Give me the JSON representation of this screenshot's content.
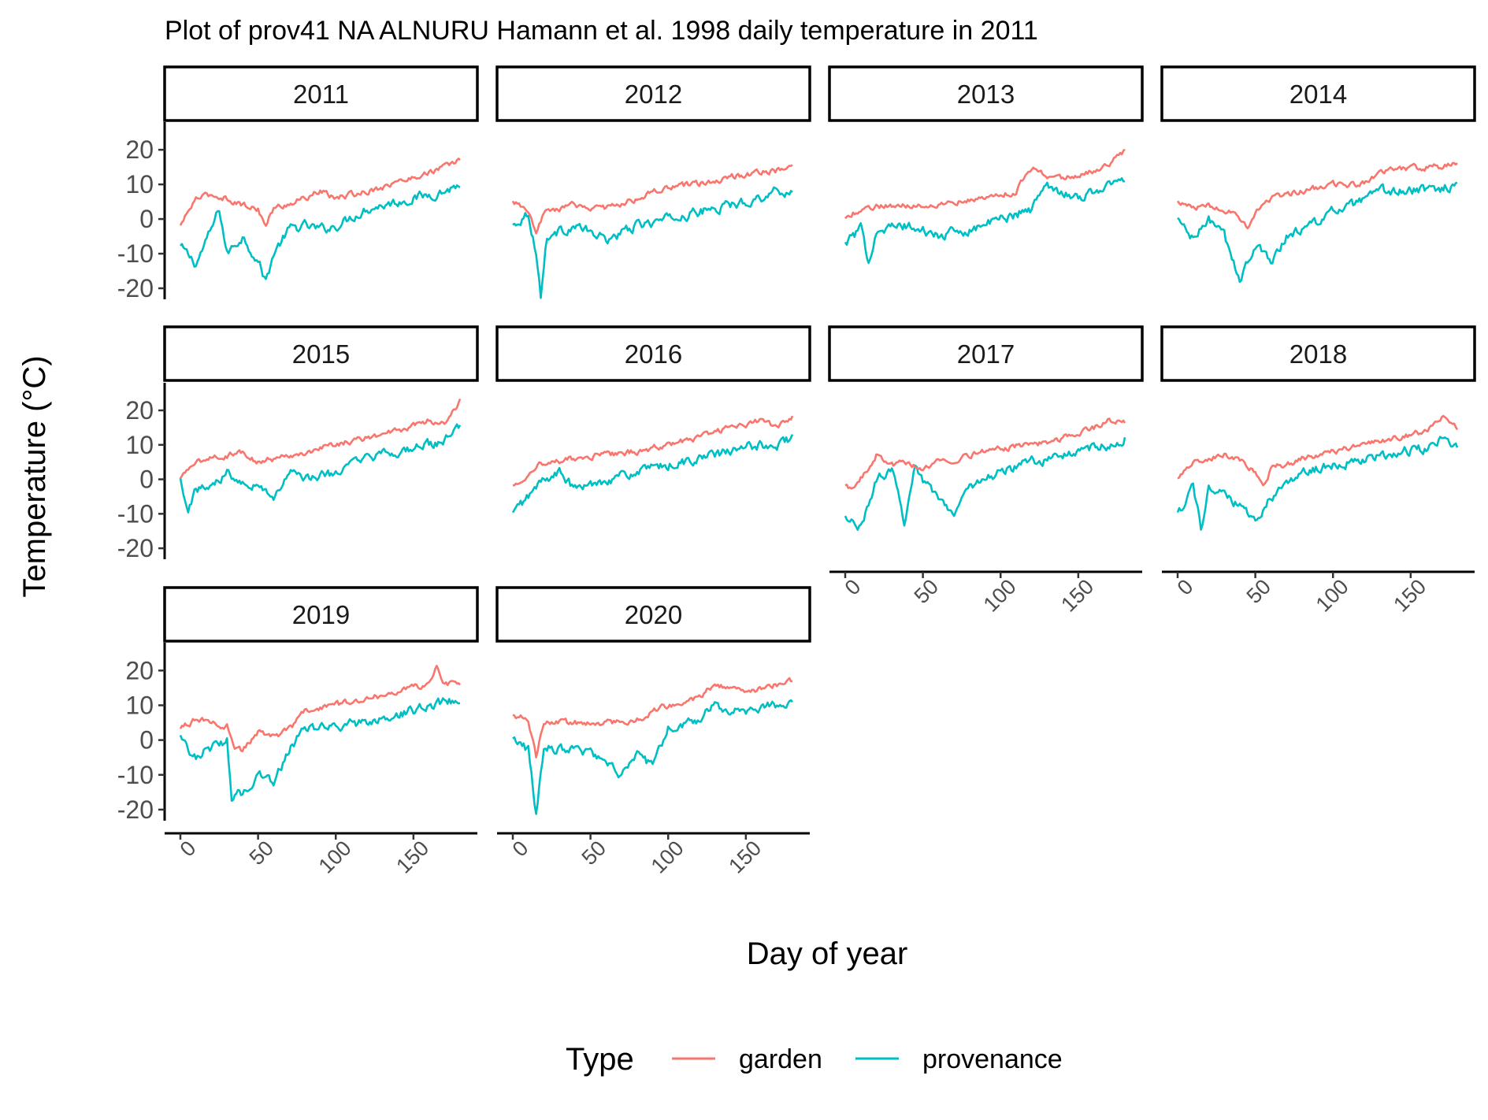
{
  "chart_data": {
    "type": "line",
    "title": "Plot of prov41 NA ALNURU Hamann et al. 1998 daily temperature in 2011",
    "xlabel": "Day of year",
    "ylabel": "Temperature (°C)",
    "xlim": [
      0,
      181
    ],
    "ylim": [
      -25,
      28
    ],
    "x_ticks": [
      "0",
      "50",
      "100",
      "150"
    ],
    "y_ticks": [
      "20",
      "10",
      "0",
      "-10",
      "-20"
    ],
    "grid": false,
    "legend": {
      "title": "Type",
      "position": "bottom",
      "entries": [
        {
          "label": "garden",
          "color": "#F8766D"
        },
        {
          "label": "provenance",
          "color": "#00BFC4"
        }
      ]
    },
    "facets": [
      {
        "label": "2011",
        "garden": [
          [
            0,
            -2
          ],
          [
            10,
            6
          ],
          [
            20,
            7
          ],
          [
            30,
            6
          ],
          [
            40,
            4
          ],
          [
            50,
            3
          ],
          [
            55,
            -2
          ],
          [
            60,
            3
          ],
          [
            80,
            6
          ],
          [
            90,
            8
          ],
          [
            100,
            6
          ],
          [
            120,
            8
          ],
          [
            150,
            12
          ],
          [
            170,
            15
          ],
          [
            180,
            17
          ]
        ],
        "provenance": [
          [
            0,
            -8
          ],
          [
            10,
            -13
          ],
          [
            20,
            -3
          ],
          [
            25,
            3
          ],
          [
            30,
            -10
          ],
          [
            40,
            -5
          ],
          [
            50,
            -12
          ],
          [
            55,
            -18
          ],
          [
            60,
            -10
          ],
          [
            70,
            -3
          ],
          [
            80,
            -2
          ],
          [
            90,
            -3
          ],
          [
            100,
            -2
          ],
          [
            120,
            3
          ],
          [
            150,
            6
          ],
          [
            170,
            8
          ],
          [
            180,
            10
          ]
        ]
      },
      {
        "label": "2012",
        "garden": [
          [
            0,
            5
          ],
          [
            10,
            2
          ],
          [
            15,
            -5
          ],
          [
            20,
            2
          ],
          [
            40,
            4
          ],
          [
            60,
            3
          ],
          [
            80,
            6
          ],
          [
            100,
            9
          ],
          [
            120,
            10
          ],
          [
            150,
            13
          ],
          [
            170,
            14
          ],
          [
            180,
            16
          ]
        ],
        "provenance": [
          [
            0,
            -2
          ],
          [
            10,
            2
          ],
          [
            15,
            -10
          ],
          [
            18,
            -22
          ],
          [
            22,
            -5
          ],
          [
            40,
            -2
          ],
          [
            60,
            -6
          ],
          [
            80,
            -2
          ],
          [
            100,
            0
          ],
          [
            120,
            2
          ],
          [
            150,
            5
          ],
          [
            170,
            8
          ],
          [
            180,
            8
          ]
        ]
      },
      {
        "label": "2013",
        "garden": [
          [
            0,
            0
          ],
          [
            10,
            3
          ],
          [
            30,
            4
          ],
          [
            50,
            4
          ],
          [
            70,
            5
          ],
          [
            90,
            6
          ],
          [
            110,
            8
          ],
          [
            120,
            15
          ],
          [
            130,
            12
          ],
          [
            150,
            12
          ],
          [
            170,
            16
          ],
          [
            180,
            20
          ]
        ],
        "provenance": [
          [
            0,
            -7
          ],
          [
            10,
            -3
          ],
          [
            15,
            -12
          ],
          [
            20,
            -3
          ],
          [
            40,
            -2
          ],
          [
            60,
            -5
          ],
          [
            80,
            -3
          ],
          [
            100,
            0
          ],
          [
            120,
            3
          ],
          [
            130,
            10
          ],
          [
            150,
            6
          ],
          [
            170,
            10
          ],
          [
            180,
            11
          ]
        ]
      },
      {
        "label": "2014",
        "garden": [
          [
            0,
            5
          ],
          [
            10,
            3
          ],
          [
            20,
            4
          ],
          [
            30,
            3
          ],
          [
            40,
            0
          ],
          [
            45,
            -2
          ],
          [
            50,
            2
          ],
          [
            60,
            6
          ],
          [
            80,
            8
          ],
          [
            100,
            10
          ],
          [
            120,
            10
          ],
          [
            130,
            14
          ],
          [
            150,
            15
          ],
          [
            170,
            15
          ],
          [
            180,
            16
          ]
        ],
        "provenance": [
          [
            0,
            0
          ],
          [
            10,
            -6
          ],
          [
            20,
            0
          ],
          [
            30,
            -5
          ],
          [
            35,
            -12
          ],
          [
            40,
            -17
          ],
          [
            50,
            -8
          ],
          [
            60,
            -12
          ],
          [
            70,
            -5
          ],
          [
            80,
            -3
          ],
          [
            100,
            2
          ],
          [
            120,
            5
          ],
          [
            130,
            8
          ],
          [
            150,
            8
          ],
          [
            170,
            9
          ],
          [
            180,
            10
          ]
        ]
      },
      {
        "label": "2015",
        "garden": [
          [
            0,
            0
          ],
          [
            10,
            5
          ],
          [
            20,
            6
          ],
          [
            30,
            7
          ],
          [
            40,
            8
          ],
          [
            50,
            5
          ],
          [
            60,
            6
          ],
          [
            80,
            8
          ],
          [
            100,
            10
          ],
          [
            120,
            12
          ],
          [
            140,
            14
          ],
          [
            160,
            17
          ],
          [
            170,
            16
          ],
          [
            180,
            23
          ]
        ],
        "provenance": [
          [
            0,
            0
          ],
          [
            5,
            -8
          ],
          [
            10,
            -3
          ],
          [
            20,
            -2
          ],
          [
            30,
            2
          ],
          [
            40,
            0
          ],
          [
            50,
            -2
          ],
          [
            60,
            -5
          ],
          [
            70,
            2
          ],
          [
            80,
            0
          ],
          [
            100,
            2
          ],
          [
            120,
            6
          ],
          [
            140,
            8
          ],
          [
            160,
            10
          ],
          [
            170,
            11
          ],
          [
            180,
            15
          ]
        ]
      },
      {
        "label": "2016",
        "garden": [
          [
            0,
            -2
          ],
          [
            10,
            2
          ],
          [
            20,
            5
          ],
          [
            40,
            6
          ],
          [
            60,
            7
          ],
          [
            80,
            8
          ],
          [
            100,
            10
          ],
          [
            120,
            12
          ],
          [
            140,
            15
          ],
          [
            160,
            17
          ],
          [
            170,
            15
          ],
          [
            180,
            18
          ]
        ],
        "provenance": [
          [
            0,
            -10
          ],
          [
            10,
            -5
          ],
          [
            20,
            0
          ],
          [
            30,
            2
          ],
          [
            40,
            -3
          ],
          [
            60,
            0
          ],
          [
            80,
            2
          ],
          [
            100,
            4
          ],
          [
            120,
            6
          ],
          [
            140,
            8
          ],
          [
            160,
            10
          ],
          [
            170,
            10
          ],
          [
            180,
            12
          ]
        ]
      },
      {
        "label": "2017",
        "garden": [
          [
            0,
            -2
          ],
          [
            5,
            -3
          ],
          [
            15,
            3
          ],
          [
            20,
            7
          ],
          [
            30,
            4
          ],
          [
            40,
            5
          ],
          [
            50,
            3
          ],
          [
            60,
            5
          ],
          [
            80,
            7
          ],
          [
            100,
            9
          ],
          [
            120,
            10
          ],
          [
            140,
            12
          ],
          [
            160,
            15
          ],
          [
            170,
            17
          ],
          [
            180,
            17
          ]
        ],
        "provenance": [
          [
            0,
            -11
          ],
          [
            10,
            -14
          ],
          [
            20,
            0
          ],
          [
            30,
            2
          ],
          [
            38,
            -12
          ],
          [
            45,
            5
          ],
          [
            50,
            0
          ],
          [
            70,
            -10
          ],
          [
            80,
            -2
          ],
          [
            100,
            2
          ],
          [
            120,
            5
          ],
          [
            140,
            7
          ],
          [
            160,
            9
          ],
          [
            170,
            10
          ],
          [
            180,
            12
          ]
        ]
      },
      {
        "label": "2018",
        "garden": [
          [
            0,
            0
          ],
          [
            10,
            5
          ],
          [
            20,
            6
          ],
          [
            30,
            7
          ],
          [
            40,
            6
          ],
          [
            50,
            2
          ],
          [
            55,
            -2
          ],
          [
            60,
            3
          ],
          [
            80,
            6
          ],
          [
            100,
            8
          ],
          [
            120,
            10
          ],
          [
            140,
            12
          ],
          [
            160,
            14
          ],
          [
            170,
            18
          ],
          [
            180,
            15
          ]
        ],
        "provenance": [
          [
            0,
            -10
          ],
          [
            10,
            -2
          ],
          [
            15,
            -14
          ],
          [
            20,
            -3
          ],
          [
            30,
            -5
          ],
          [
            40,
            -8
          ],
          [
            50,
            -12
          ],
          [
            60,
            -5
          ],
          [
            80,
            2
          ],
          [
            100,
            4
          ],
          [
            120,
            6
          ],
          [
            140,
            8
          ],
          [
            160,
            9
          ],
          [
            170,
            12
          ],
          [
            180,
            10
          ]
        ]
      },
      {
        "label": "2019",
        "garden": [
          [
            0,
            3
          ],
          [
            10,
            6
          ],
          [
            20,
            5
          ],
          [
            30,
            4
          ],
          [
            35,
            -2
          ],
          [
            40,
            -3
          ],
          [
            50,
            2
          ],
          [
            60,
            1
          ],
          [
            70,
            3
          ],
          [
            80,
            8
          ],
          [
            100,
            10
          ],
          [
            120,
            12
          ],
          [
            140,
            14
          ],
          [
            160,
            16
          ],
          [
            165,
            22
          ],
          [
            170,
            16
          ],
          [
            180,
            16
          ]
        ],
        "provenance": [
          [
            0,
            1
          ],
          [
            10,
            -5
          ],
          [
            20,
            -2
          ],
          [
            30,
            0
          ],
          [
            33,
            -17
          ],
          [
            40,
            -15
          ],
          [
            50,
            -10
          ],
          [
            60,
            -12
          ],
          [
            70,
            -3
          ],
          [
            80,
            3
          ],
          [
            100,
            4
          ],
          [
            120,
            5
          ],
          [
            140,
            7
          ],
          [
            160,
            10
          ],
          [
            170,
            11
          ],
          [
            180,
            12
          ]
        ]
      },
      {
        "label": "2020",
        "garden": [
          [
            0,
            7
          ],
          [
            10,
            6
          ],
          [
            15,
            -5
          ],
          [
            20,
            5
          ],
          [
            40,
            5
          ],
          [
            60,
            5
          ],
          [
            80,
            6
          ],
          [
            100,
            10
          ],
          [
            120,
            12
          ],
          [
            130,
            16
          ],
          [
            150,
            14
          ],
          [
            170,
            16
          ],
          [
            180,
            17
          ]
        ],
        "provenance": [
          [
            0,
            0
          ],
          [
            10,
            -3
          ],
          [
            15,
            -22
          ],
          [
            20,
            -2
          ],
          [
            40,
            -3
          ],
          [
            60,
            -5
          ],
          [
            70,
            -10
          ],
          [
            80,
            -3
          ],
          [
            90,
            -8
          ],
          [
            100,
            4
          ],
          [
            120,
            6
          ],
          [
            130,
            10
          ],
          [
            150,
            8
          ],
          [
            170,
            10
          ],
          [
            180,
            11
          ]
        ]
      }
    ]
  }
}
